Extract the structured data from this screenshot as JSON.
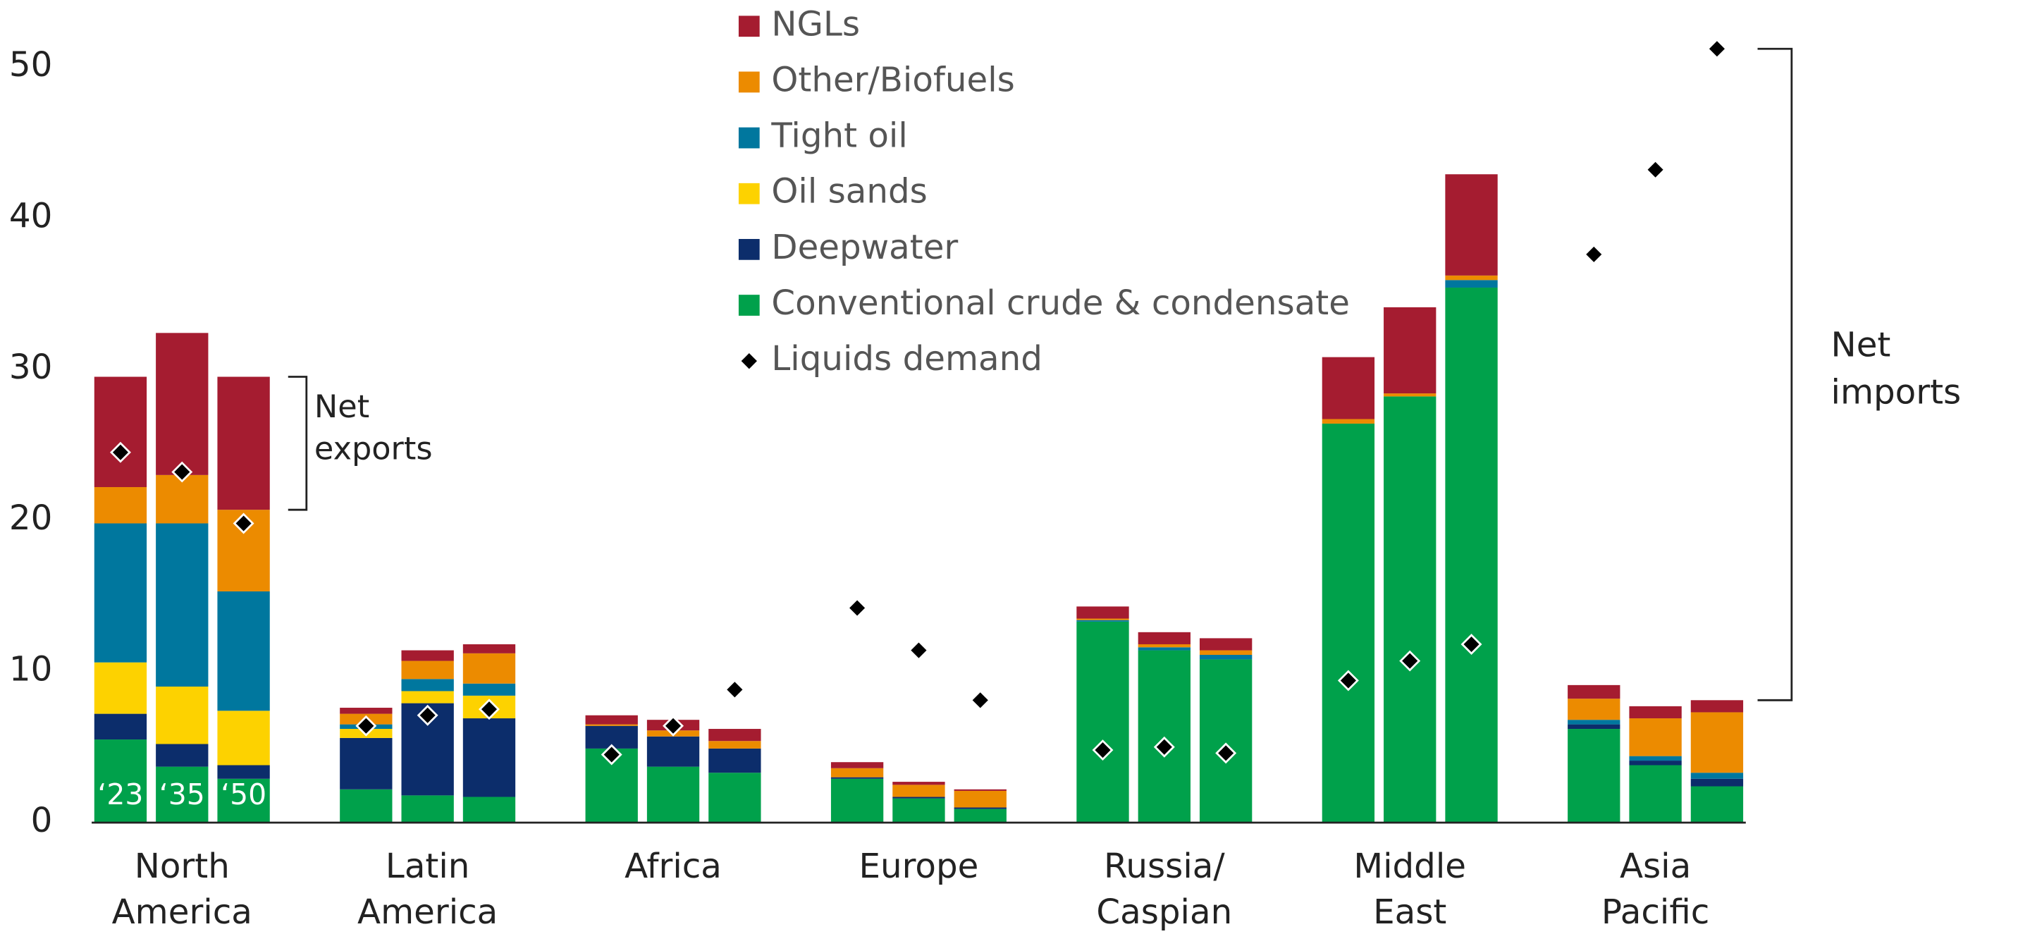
{
  "chart_data": {
    "type": "stacked-bar",
    "categories": [
      "North\nAmerica",
      "Latin\nAmerica",
      "Africa",
      "Europe",
      "Russia/\nCaspian",
      "Middle\nEast",
      "Asia\nPacific"
    ],
    "periods": [
      "‘23",
      "‘35",
      "‘50"
    ],
    "series": [
      {
        "name": "Conventional crude & condensate",
        "color": "#00a14b",
        "values": [
          [
            5.5,
            3.7,
            2.9
          ],
          [
            2.2,
            1.8,
            1.7
          ],
          [
            4.9,
            3.7,
            3.3
          ],
          [
            2.9,
            1.6,
            0.9
          ],
          [
            13.3,
            11.4,
            10.8
          ],
          [
            26.4,
            28.2,
            35.4
          ],
          [
            6.2,
            3.8,
            2.4
          ]
        ]
      },
      {
        "name": "Deepwater",
        "color": "#0c2d6b",
        "values": [
          [
            1.7,
            1.5,
            0.9
          ],
          [
            3.4,
            6.1,
            5.2
          ],
          [
            1.5,
            2.0,
            1.6
          ],
          [
            0.1,
            0.1,
            0.1
          ],
          [
            0,
            0,
            0
          ],
          [
            0,
            0,
            0
          ],
          [
            0.3,
            0.3,
            0.5
          ]
        ]
      },
      {
        "name": "Oil sands",
        "color": "#fdd200",
        "values": [
          [
            3.4,
            3.8,
            3.6
          ],
          [
            0.6,
            0.8,
            1.5
          ],
          [
            0,
            0,
            0
          ],
          [
            0,
            0,
            0
          ],
          [
            0,
            0,
            0
          ],
          [
            0,
            0,
            0
          ],
          [
            0,
            0,
            0
          ]
        ]
      },
      {
        "name": "Tight oil",
        "color": "#00779e",
        "values": [
          [
            9.2,
            10.8,
            7.9
          ],
          [
            0.3,
            0.8,
            0.8
          ],
          [
            0,
            0,
            0
          ],
          [
            0,
            0,
            0
          ],
          [
            0.1,
            0.2,
            0.3
          ],
          [
            0,
            0,
            0.5
          ],
          [
            0.3,
            0.3,
            0.4
          ]
        ]
      },
      {
        "name": "Other/Biofuels",
        "color": "#ec8b00",
        "values": [
          [
            2.4,
            3.2,
            5.4
          ],
          [
            0.7,
            1.2,
            2.0
          ],
          [
            0.1,
            0.4,
            0.5
          ],
          [
            0.6,
            0.8,
            1.1
          ],
          [
            0.1,
            0.2,
            0.3
          ],
          [
            0.3,
            0.2,
            0.3
          ],
          [
            1.4,
            2.5,
            4.0
          ]
        ]
      },
      {
        "name": "NGLs",
        "color": "#a51c30",
        "values": [
          [
            7.3,
            9.4,
            8.8
          ],
          [
            0.4,
            0.7,
            0.6
          ],
          [
            0.6,
            0.7,
            0.8
          ],
          [
            0.4,
            0.2,
            0.1
          ],
          [
            0.8,
            0.8,
            0.8
          ],
          [
            4.1,
            5.7,
            6.7
          ],
          [
            0.9,
            0.8,
            0.8
          ]
        ]
      }
    ],
    "demand": {
      "name": "Liquids demand",
      "color": "#000000",
      "values": [
        [
          24.5,
          23.2,
          19.8
        ],
        [
          6.4,
          7.1,
          7.5
        ],
        [
          4.5,
          6.4,
          8.8
        ],
        [
          14.2,
          11.4,
          8.1
        ],
        [
          4.8,
          5.0,
          4.6
        ],
        [
          9.4,
          10.7,
          11.8
        ],
        [
          37.6,
          43.2,
          51.2
        ]
      ]
    },
    "ylim": [
      0,
      52
    ],
    "yticks": [
      0,
      10,
      20,
      30,
      40,
      50
    ],
    "annotations": [
      "Net\nexports",
      "Net\nimports"
    ]
  }
}
